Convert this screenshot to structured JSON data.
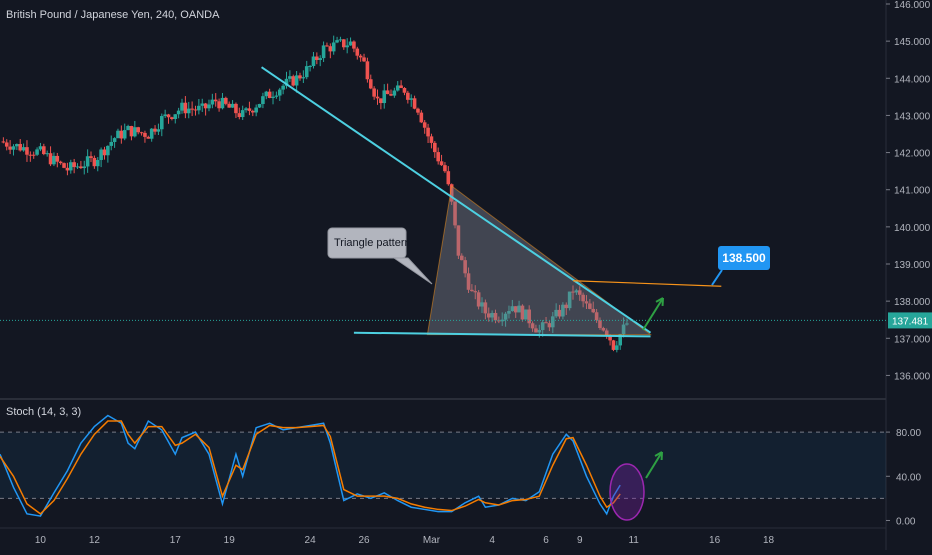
{
  "chart_data": [
    {
      "type": "candlestick",
      "title": "British Pound / Japanese Yen, 240, OANDA",
      "ylim": [
        135.5,
        146.0
      ],
      "y_ticks": [
        "146.000",
        "145.000",
        "144.000",
        "143.000",
        "142.000",
        "141.000",
        "140.000",
        "139.000",
        "138.000",
        "137.000",
        "136.000"
      ],
      "x_ticks": [
        "10",
        "12",
        "17",
        "19",
        "24",
        "26",
        "Mar",
        "4",
        "6",
        "9",
        "11",
        "16",
        "18"
      ],
      "current_price": {
        "value": 137.481,
        "label": "137.481",
        "color": "#26a69a"
      },
      "up_color": "#26a69a",
      "down_color": "#ef5350",
      "close_path": [
        [
          0,
          142.3
        ],
        [
          6,
          142.0
        ],
        [
          10,
          141.55
        ],
        [
          14,
          141.8
        ],
        [
          17,
          142.4
        ],
        [
          19,
          142.6
        ],
        [
          22,
          142.5
        ],
        [
          24,
          142.9
        ],
        [
          27,
          143.2
        ],
        [
          30,
          143.15
        ],
        [
          32,
          143.4
        ],
        [
          36,
          143.0
        ],
        [
          38,
          143.3
        ],
        [
          41,
          143.7
        ],
        [
          44,
          144.0
        ],
        [
          46,
          144.3
        ],
        [
          48,
          144.8
        ],
        [
          50,
          144.9
        ],
        [
          52,
          144.95
        ],
        [
          54,
          144.4
        ],
        [
          56,
          143.4
        ],
        [
          58,
          143.6
        ],
        [
          60,
          143.7
        ],
        [
          62,
          143.2
        ],
        [
          64,
          142.2
        ],
        [
          66,
          141.5
        ],
        [
          67,
          140.6
        ],
        [
          68,
          139.3
        ],
        [
          70,
          138.2
        ],
        [
          72,
          137.7
        ],
        [
          74,
          137.6
        ],
        [
          76,
          137.9
        ],
        [
          78,
          137.6
        ],
        [
          80,
          137.2
        ],
        [
          82,
          137.5
        ],
        [
          84,
          137.9
        ],
        [
          85,
          138.3
        ],
        [
          86,
          138.1
        ],
        [
          88,
          137.6
        ],
        [
          90,
          137.2
        ],
        [
          91,
          136.8
        ],
        [
          92,
          137.1
        ],
        [
          93,
          137.4
        ]
      ],
      "series": [
        {
          "name": "Triangle pattern",
          "shape": "triangle",
          "points": [
            [
              67,
              141.1
            ],
            [
              63.4,
              137.1
            ],
            [
              96.5,
              137.1
            ]
          ],
          "fill": "#7a7e8c"
        },
        {
          "name": "",
          "type": "line",
          "points": [
            [
              38.8,
              144.3
            ],
            [
              96.5,
              137.15
            ]
          ],
          "color": "#4dd0e1"
        },
        {
          "name": "",
          "type": "line",
          "points": [
            [
              52.5,
              137.15
            ],
            [
              96.5,
              137.05
            ]
          ],
          "color": "#4dd0e1"
        },
        {
          "name": "",
          "type": "line",
          "points": [
            [
              85,
              138.55
            ],
            [
              107,
              138.4
            ]
          ],
          "color": "#f7931a"
        }
      ],
      "annotations": [
        {
          "text": "Triangle pattern",
          "kind": "callout",
          "anchor": [
            63,
            138.3
          ]
        },
        {
          "text": "138.500",
          "kind": "price-label",
          "anchor": [
            103,
            138.5
          ],
          "color": "#2196f3"
        },
        {
          "kind": "arrow",
          "from": [
            93.5,
            137.3
          ],
          "to": [
            96,
            138.2
          ],
          "color": "#26a69a"
        }
      ]
    },
    {
      "type": "line",
      "title": "Stoch (14, 3, 3)",
      "ylim": [
        -5,
        100
      ],
      "y_ticks": [
        "80.00",
        "40.00",
        "0.00"
      ],
      "bands": [
        80,
        20
      ],
      "x_ticks": [
        "10",
        "12",
        "17",
        "19",
        "24",
        "26",
        "Mar",
        "4",
        "6",
        "9",
        "11",
        "16",
        "18"
      ],
      "series": [
        {
          "name": "",
          "color": "#2196f3",
          "values": [
            [
              0,
              60
            ],
            [
              2,
              30
            ],
            [
              4,
              6
            ],
            [
              6,
              4
            ],
            [
              8,
              25
            ],
            [
              10,
              45
            ],
            [
              12,
              70
            ],
            [
              14,
              85
            ],
            [
              16,
              95
            ],
            [
              18,
              88
            ],
            [
              19,
              70
            ],
            [
              20,
              65
            ],
            [
              22,
              90
            ],
            [
              24,
              82
            ],
            [
              26,
              60
            ],
            [
              27,
              75
            ],
            [
              29,
              80
            ],
            [
              31,
              60
            ],
            [
              33,
              15
            ],
            [
              35,
              60
            ],
            [
              36,
              40
            ],
            [
              38,
              84
            ],
            [
              40,
              88
            ],
            [
              42,
              82
            ],
            [
              44,
              84
            ],
            [
              46,
              86
            ],
            [
              48,
              88
            ],
            [
              49,
              70
            ],
            [
              51,
              18
            ],
            [
              53,
              24
            ],
            [
              55,
              20
            ],
            [
              57,
              25
            ],
            [
              59,
              18
            ],
            [
              61,
              12
            ],
            [
              63,
              10
            ],
            [
              65,
              8
            ],
            [
              67,
              8
            ],
            [
              69,
              16
            ],
            [
              71,
              22
            ],
            [
              72,
              12
            ],
            [
              74,
              14
            ],
            [
              76,
              20
            ],
            [
              78,
              18
            ],
            [
              80,
              26
            ],
            [
              82,
              60
            ],
            [
              84,
              78
            ],
            [
              85,
              72
            ],
            [
              87,
              40
            ],
            [
              89,
              15
            ],
            [
              90,
              6
            ],
            [
              91,
              22
            ],
            [
              92,
              32
            ]
          ]
        },
        {
          "name": "",
          "color": "#f57c00",
          "values": [
            [
              0,
              58
            ],
            [
              2,
              40
            ],
            [
              4,
              15
            ],
            [
              6,
              6
            ],
            [
              8,
              18
            ],
            [
              10,
              38
            ],
            [
              12,
              60
            ],
            [
              14,
              78
            ],
            [
              16,
              90
            ],
            [
              18,
              90
            ],
            [
              19,
              78
            ],
            [
              20,
              70
            ],
            [
              22,
              85
            ],
            [
              24,
              85
            ],
            [
              26,
              68
            ],
            [
              27,
              70
            ],
            [
              29,
              78
            ],
            [
              31,
              66
            ],
            [
              33,
              22
            ],
            [
              35,
              50
            ],
            [
              36,
              46
            ],
            [
              38,
              78
            ],
            [
              40,
              86
            ],
            [
              42,
              84
            ],
            [
              44,
              84
            ],
            [
              46,
              85
            ],
            [
              48,
              86
            ],
            [
              49,
              76
            ],
            [
              51,
              28
            ],
            [
              53,
              22
            ],
            [
              55,
              22
            ],
            [
              57,
              22
            ],
            [
              59,
              20
            ],
            [
              61,
              15
            ],
            [
              63,
              12
            ],
            [
              65,
              10
            ],
            [
              67,
              9
            ],
            [
              69,
              13
            ],
            [
              71,
              19
            ],
            [
              72,
              16
            ],
            [
              74,
              14
            ],
            [
              76,
              18
            ],
            [
              78,
              19
            ],
            [
              80,
              22
            ],
            [
              82,
              50
            ],
            [
              84,
              74
            ],
            [
              85,
              75
            ],
            [
              87,
              50
            ],
            [
              89,
              22
            ],
            [
              90,
              12
            ],
            [
              91,
              16
            ],
            [
              92,
              24
            ]
          ]
        }
      ],
      "annotations": [
        {
          "kind": "ellipse",
          "center": [
            90.5,
            12
          ],
          "color": "#7b1fa2"
        },
        {
          "kind": "arrow",
          "from": [
            93.5,
            35
          ],
          "to": [
            95.5,
            57
          ],
          "color": "#26a69a"
        }
      ]
    }
  ]
}
